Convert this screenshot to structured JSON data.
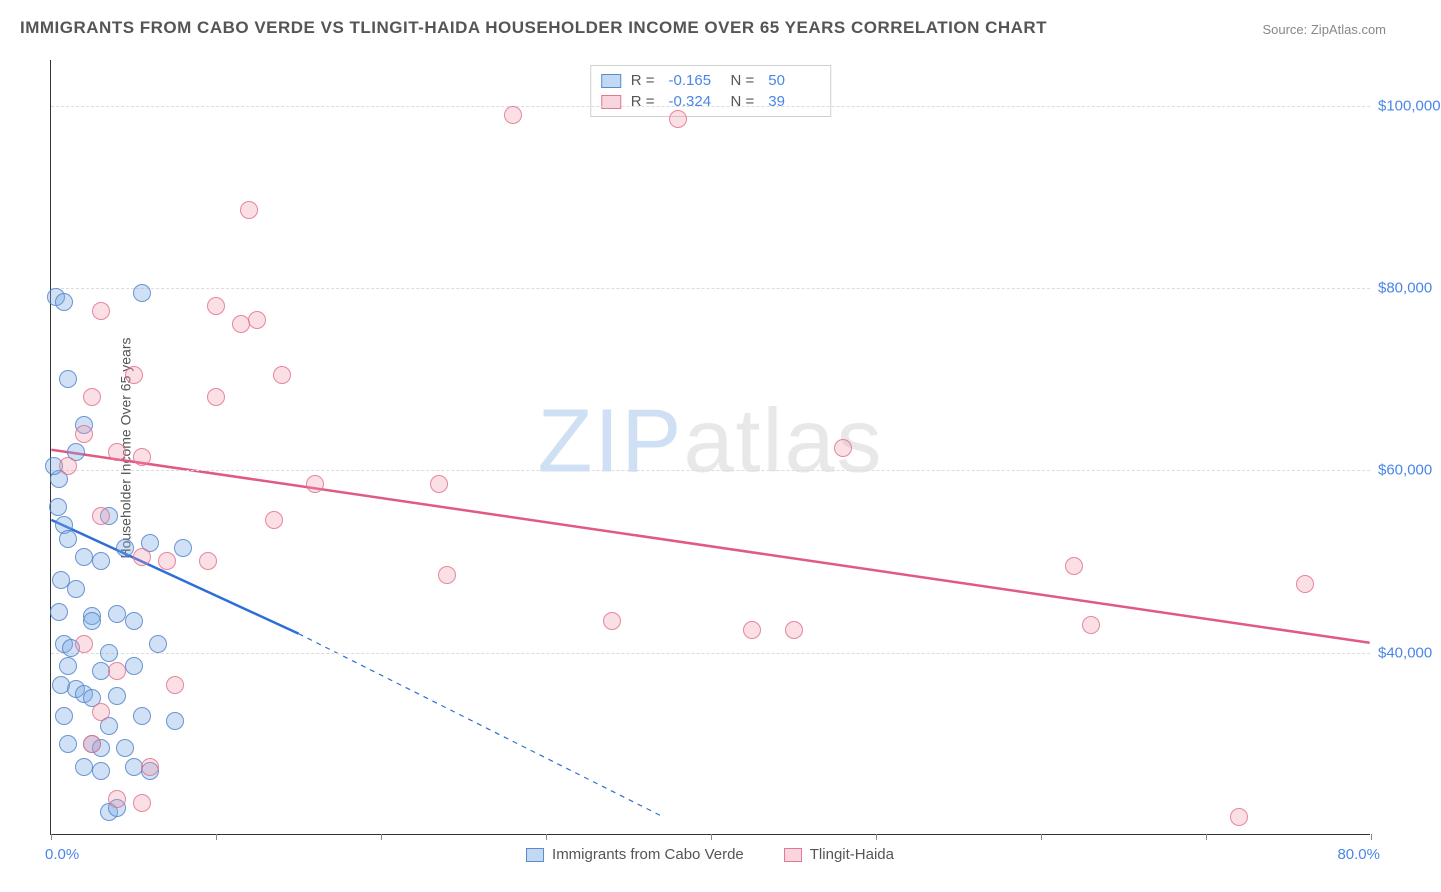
{
  "title": "IMMIGRANTS FROM CABO VERDE VS TLINGIT-HAIDA HOUSEHOLDER INCOME OVER 65 YEARS CORRELATION CHART",
  "source": "Source: ZipAtlas.com",
  "watermark": {
    "zip": "ZIP",
    "atlas": "atlas"
  },
  "chart": {
    "type": "scatter",
    "background_color": "#ffffff",
    "grid_color": "#dcdcdc",
    "x": {
      "min": 0,
      "max": 80,
      "min_label": "0.0%",
      "max_label": "80.0%",
      "tick_step": 10
    },
    "y": {
      "min": 20000,
      "max": 105000,
      "ticks": [
        40000,
        60000,
        80000,
        100000
      ],
      "tick_labels": [
        "$40,000",
        "$60,000",
        "$80,000",
        "$100,000"
      ],
      "title": "Householder Income Over 65 years"
    },
    "series": [
      {
        "name": "Immigrants from Cabo Verde",
        "color_fill": "rgba(120,170,230,0.35)",
        "color_stroke": "#5a8ccf",
        "marker_class": "pt-blue",
        "swatch_class": "sw-blue",
        "R": "-0.165",
        "N": "50",
        "trend": {
          "x1": 0,
          "y1": 54500,
          "x2": 15,
          "y2": 42000,
          "x2_extrap": 37,
          "y2_extrap": 22000,
          "stroke": "#2e6fd6",
          "width": 2.5,
          "dash_extrap": "5,5"
        },
        "points": [
          [
            0.3,
            79000
          ],
          [
            0.8,
            78500
          ],
          [
            2.0,
            65000
          ],
          [
            1.0,
            70000
          ],
          [
            1.5,
            62000
          ],
          [
            0.5,
            59000
          ],
          [
            0.2,
            60500
          ],
          [
            5.5,
            79500
          ],
          [
            0.4,
            56000
          ],
          [
            0.8,
            54000
          ],
          [
            1.0,
            52500
          ],
          [
            2.0,
            50500
          ],
          [
            3.5,
            55000
          ],
          [
            1.5,
            47000
          ],
          [
            0.6,
            48000
          ],
          [
            3.0,
            50000
          ],
          [
            4.5,
            51500
          ],
          [
            6.0,
            52000
          ],
          [
            0.5,
            44500
          ],
          [
            2.5,
            44000
          ],
          [
            2.5,
            43500
          ],
          [
            4.0,
            44200
          ],
          [
            5.0,
            43500
          ],
          [
            0.8,
            41000
          ],
          [
            1.2,
            40500
          ],
          [
            3.5,
            40000
          ],
          [
            6.5,
            41000
          ],
          [
            8.0,
            51500
          ],
          [
            1.0,
            38500
          ],
          [
            3.0,
            38000
          ],
          [
            5.0,
            38500
          ],
          [
            0.6,
            36500
          ],
          [
            1.5,
            36000
          ],
          [
            2.0,
            35500
          ],
          [
            2.5,
            35000
          ],
          [
            4.0,
            35200
          ],
          [
            0.8,
            33000
          ],
          [
            3.5,
            32000
          ],
          [
            5.5,
            33000
          ],
          [
            7.5,
            32500
          ],
          [
            1.0,
            30000
          ],
          [
            2.5,
            30000
          ],
          [
            3.0,
            29500
          ],
          [
            4.5,
            29500
          ],
          [
            2.0,
            27500
          ],
          [
            3.0,
            27000
          ],
          [
            5.0,
            27500
          ],
          [
            6.0,
            27000
          ],
          [
            3.5,
            22500
          ],
          [
            4.0,
            23000
          ]
        ]
      },
      {
        "name": "Tlingit-Haida",
        "color_fill": "rgba(240,150,170,0.30)",
        "color_stroke": "#e07a96",
        "marker_class": "pt-pink",
        "swatch_class": "sw-pink",
        "R": "-0.324",
        "N": "39",
        "trend": {
          "x1": 0,
          "y1": 62200,
          "x2": 80,
          "y2": 41000,
          "stroke": "#e05a82",
          "width": 2.5
        },
        "points": [
          [
            28.0,
            99000
          ],
          [
            38.0,
            98500
          ],
          [
            12.0,
            88500
          ],
          [
            3.0,
            77500
          ],
          [
            10.0,
            78000
          ],
          [
            11.5,
            76000
          ],
          [
            12.5,
            76500
          ],
          [
            5.0,
            70500
          ],
          [
            14.0,
            70500
          ],
          [
            2.5,
            68000
          ],
          [
            10.0,
            68000
          ],
          [
            2.0,
            64000
          ],
          [
            4.0,
            62000
          ],
          [
            5.5,
            61500
          ],
          [
            48.0,
            62500
          ],
          [
            1.0,
            60500
          ],
          [
            16.0,
            58500
          ],
          [
            23.5,
            58500
          ],
          [
            3.0,
            55000
          ],
          [
            13.5,
            54500
          ],
          [
            5.5,
            50500
          ],
          [
            7.0,
            50000
          ],
          [
            9.5,
            50000
          ],
          [
            24.0,
            48500
          ],
          [
            62.0,
            49500
          ],
          [
            76.0,
            47500
          ],
          [
            34.0,
            43500
          ],
          [
            42.5,
            42500
          ],
          [
            45.0,
            42500
          ],
          [
            63.0,
            43000
          ],
          [
            2.0,
            41000
          ],
          [
            4.0,
            38000
          ],
          [
            7.5,
            36500
          ],
          [
            3.0,
            33500
          ],
          [
            2.5,
            30000
          ],
          [
            6.0,
            27500
          ],
          [
            4.0,
            24000
          ],
          [
            5.5,
            23500
          ],
          [
            72.0,
            22000
          ]
        ]
      }
    ]
  }
}
